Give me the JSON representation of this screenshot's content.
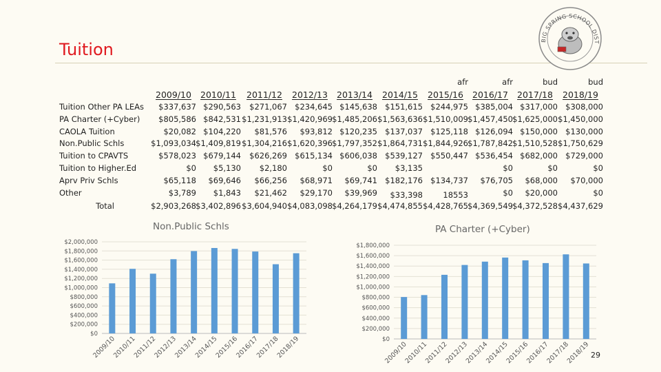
{
  "page": {
    "title": "Tuition",
    "page_number": "29"
  },
  "seal": {
    "text": "BIG SPRING SCHOOL DISTRICT"
  },
  "table": {
    "years": [
      "2009/10",
      "2010/11",
      "2011/12",
      "2012/13",
      "2013/14",
      "2014/15",
      "2015/16",
      "2016/17",
      "2017/18",
      "2018/19"
    ],
    "notes": [
      "",
      "",
      "",
      "",
      "",
      "",
      "afr",
      "afr",
      "bud",
      "bud"
    ],
    "rows": [
      {
        "label": "Tuition Other PA LEAs",
        "values": [
          "$337,637",
          "$290,563",
          "$271,067",
          "$234,645",
          "$145,638",
          "$151,615",
          "$244,975",
          "$385,004",
          "$317,000",
          "$308,000"
        ]
      },
      {
        "label": "PA Charter (+Cyber)",
        "values": [
          "$805,586",
          "$842,531",
          "$1,231,913",
          "$1,420,969",
          "$1,485,206",
          "$1,563,636",
          "$1,510,009",
          "$1,457,450",
          "$1,625,000",
          "$1,450,000"
        ]
      },
      {
        "label": "CAOLA Tuition",
        "values": [
          "$20,082",
          "$104,220",
          "$81,576",
          "$93,812",
          "$120,235",
          "$137,037",
          "$125,118",
          "$126,094",
          "$150,000",
          "$130,000"
        ]
      },
      {
        "label": "Non.Public Schls",
        "values": [
          "$1,093,034",
          "$1,409,819",
          "$1,304,216",
          "$1,620,396",
          "$1,797,352",
          "$1,864,731",
          "$1,844,926",
          "$1,787,842",
          "$1,510,528",
          "$1,750,629"
        ]
      },
      {
        "label": "Tuition to CPAVTS",
        "values": [
          "$578,023",
          "$679,144",
          "$626,269",
          "$615,134",
          "$606,038",
          "$539,127",
          "$550,447",
          "$536,454",
          "$682,000",
          "$729,000"
        ]
      },
      {
        "label": "Tuition to Higher.Ed",
        "values": [
          "$0",
          "$5,130",
          "$2,180",
          "$0",
          "$0",
          "$3,135",
          "",
          "$0",
          "$0",
          "$0"
        ]
      },
      {
        "label": "Aprv Priv Schls",
        "values": [
          "$65,118",
          "$69,646",
          "$66,256",
          "$68,971",
          "$69,741",
          "$182,176",
          "$134,737",
          "$76,705",
          "$68,000",
          "$70,000"
        ]
      },
      {
        "label": "Other",
        "values": [
          "$3,789",
          "$1,843",
          "$21,462",
          "$29,170",
          "$39,969",
          "$33,398",
          "18553",
          "$0",
          "$20,000",
          "$0"
        ]
      }
    ],
    "total": {
      "label": "Total",
      "values": [
        "$2,903,268",
        "$3,402,896",
        "$3,604,940",
        "$4,083,098",
        "$4,264,179",
        "$4,474,855",
        "$4,428,765",
        "$4,369,549",
        "$4,372,528",
        "$4,437,629"
      ]
    }
  },
  "chart_data": [
    {
      "type": "bar",
      "title": "Non.Public Schls",
      "categories": [
        "2009/10",
        "2010/11",
        "2011/12",
        "2012/13",
        "2013/14",
        "2014/15",
        "2015/16",
        "2016/17",
        "2017/18",
        "2018/19"
      ],
      "values": [
        1093034,
        1409819,
        1304216,
        1620396,
        1797352,
        1864731,
        1844926,
        1787842,
        1510528,
        1750629
      ],
      "ylim": [
        0,
        2000000
      ],
      "yticks": [
        "$0",
        "$200,000",
        "$400,000",
        "$600,000",
        "$800,000",
        "$1,000,000",
        "$1,200,000",
        "$1,400,000",
        "$1,600,000",
        "$1,800,000",
        "$2,000,000"
      ],
      "color": "#5b9bd5",
      "gridlines": true
    },
    {
      "type": "bar",
      "title": "PA Charter (+Cyber)",
      "categories": [
        "2009/10",
        "2010/11",
        "2011/12",
        "2012/13",
        "2013/14",
        "2014/15",
        "2015/16",
        "2016/17",
        "2017/18",
        "2018/19"
      ],
      "values": [
        805586,
        842531,
        1231913,
        1420969,
        1485206,
        1563636,
        1510009,
        1457450,
        1625000,
        1450000
      ],
      "ylim": [
        0,
        1800000
      ],
      "yticks": [
        "$0",
        "$200,000",
        "$400,000",
        "$600,000",
        "$800,000",
        "$1,000,000",
        "$1,200,000",
        "$1,400,000",
        "$1,600,000",
        "$1,800,000"
      ],
      "color": "#5b9bd5",
      "gridlines": true
    }
  ]
}
